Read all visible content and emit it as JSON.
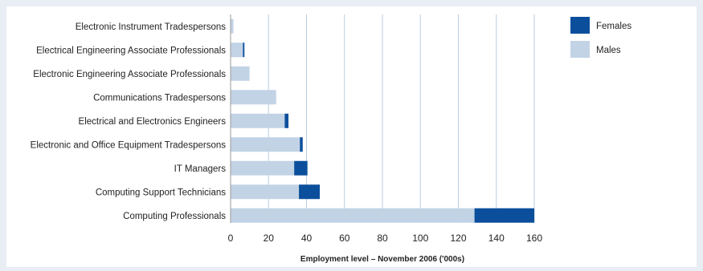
{
  "chart_data": {
    "type": "bar",
    "orientation": "horizontal",
    "stacked": true,
    "categories": [
      "Electronic Instrument Tradespersons",
      "Electrical Engineering Associate Professionals",
      "Electronic Engineering Associate Professionals",
      "Communications Tradespersons",
      "Electrical and Electronics Engineers",
      "Electronic and Office Equipment Tradespersons",
      "IT Managers",
      "Computing Support Technicians",
      "Computing Professionals"
    ],
    "series": [
      {
        "name": "Males",
        "color": "#c2d3e6",
        "values": [
          1.5,
          6.5,
          10,
          24,
          28.5,
          36.5,
          33.5,
          36,
          128.5
        ]
      },
      {
        "name": "Females",
        "color": "#0b4f9c",
        "values": [
          0,
          0.8,
          0,
          0,
          2,
          1.5,
          7,
          11,
          31.5
        ]
      }
    ],
    "xlabel": "Employment level – November 2006 ('000s)",
    "ylabel": "",
    "xlim": [
      0,
      160
    ],
    "xticks": [
      0,
      20,
      40,
      60,
      80,
      100,
      120,
      140,
      160
    ],
    "grid": true,
    "legend": {
      "placement": "right",
      "entries": [
        {
          "label": "Females",
          "color": "#0b4f9c"
        },
        {
          "label": "Males",
          "color": "#c2d3e6"
        }
      ]
    }
  }
}
